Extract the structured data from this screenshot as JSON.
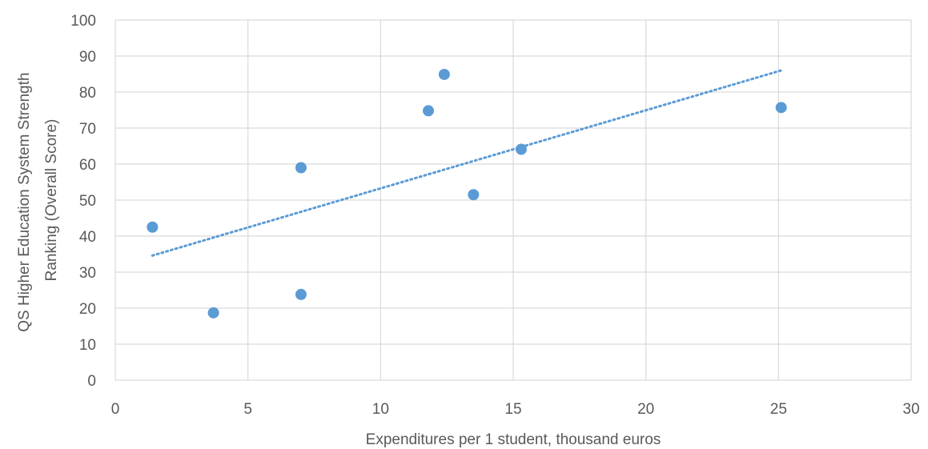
{
  "chart_data": {
    "type": "scatter",
    "title": "",
    "xlabel": "Expenditures per 1 student, thousand euros",
    "ylabel_lines": [
      "QS Higher Education System Strength",
      "Ranking (Overall Score)"
    ],
    "xlim": [
      0,
      30
    ],
    "ylim": [
      0,
      100
    ],
    "x_ticks": [
      0,
      5,
      10,
      15,
      20,
      25,
      30
    ],
    "y_ticks": [
      0,
      10,
      20,
      30,
      40,
      50,
      60,
      70,
      80,
      90,
      100
    ],
    "grid": true,
    "points": [
      {
        "x": 1.4,
        "y": 42.5
      },
      {
        "x": 3.7,
        "y": 18.7
      },
      {
        "x": 7.0,
        "y": 59.0
      },
      {
        "x": 7.0,
        "y": 23.8
      },
      {
        "x": 11.8,
        "y": 74.8
      },
      {
        "x": 12.4,
        "y": 84.9
      },
      {
        "x": 13.5,
        "y": 51.5
      },
      {
        "x": 15.3,
        "y": 64.1
      },
      {
        "x": 25.1,
        "y": 75.7
      }
    ],
    "trendline": {
      "style": "dotted",
      "x": [
        1.4,
        25.1
      ],
      "y": [
        34.6,
        86.0
      ]
    },
    "colors": {
      "marker": "#5B9BD5",
      "trendline": "#5B9BD5",
      "grid": "#D9D9D9",
      "text": "#595959"
    }
  }
}
